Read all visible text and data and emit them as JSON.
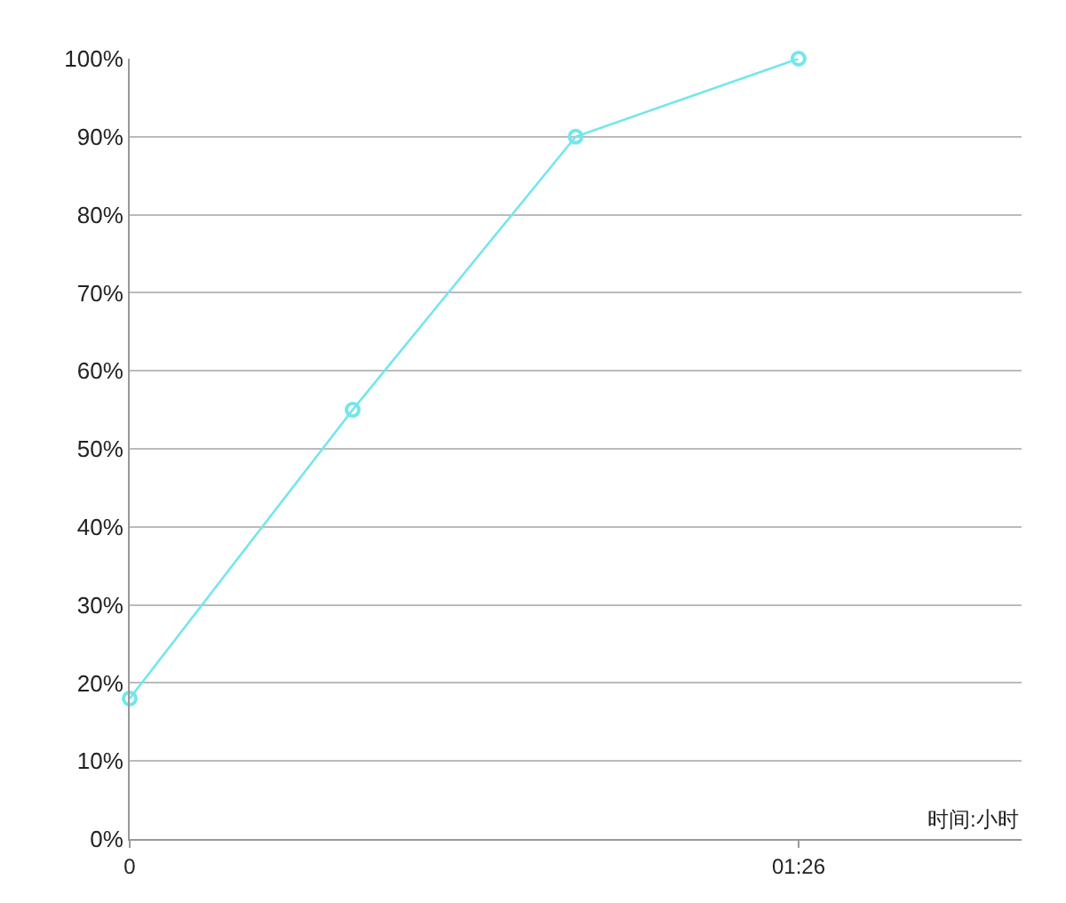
{
  "chart_data": {
    "type": "line",
    "xlabel": "时间:小时",
    "categories": [
      "0",
      null,
      null,
      "01:26",
      null
    ],
    "series": [
      {
        "color": "#74e6ec",
        "values": [
          18,
          55,
          90,
          100,
          null
        ]
      }
    ],
    "ylim": [
      0,
      100
    ],
    "yticks": [
      {
        "value": 0,
        "label": "0%"
      },
      {
        "value": 10,
        "label": "10%"
      },
      {
        "value": 20,
        "label": "20%"
      },
      {
        "value": 30,
        "label": "30%"
      },
      {
        "value": 40,
        "label": "40%"
      },
      {
        "value": 50,
        "label": "50%"
      },
      {
        "value": 60,
        "label": "60%"
      },
      {
        "value": 70,
        "label": "70%"
      },
      {
        "value": 80,
        "label": "80%"
      },
      {
        "value": 90,
        "label": "90%"
      },
      {
        "value": 100,
        "label": "100%"
      }
    ],
    "grid": "y",
    "marker": "circle",
    "line_style": "solid"
  }
}
